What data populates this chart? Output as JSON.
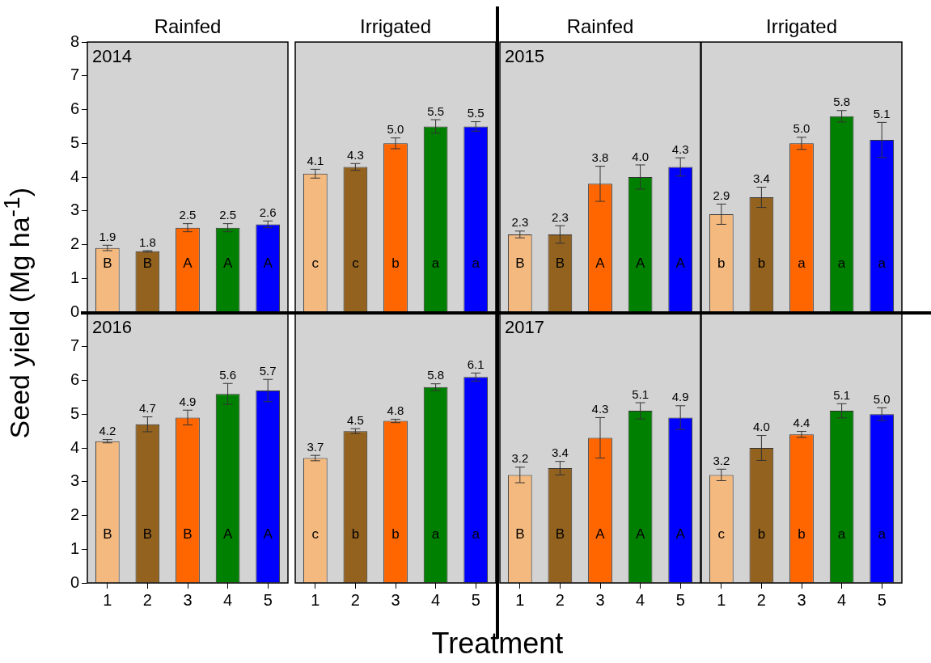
{
  "chart_data": [
    {
      "type": "bar",
      "title": "Rainfed",
      "ylabel": "Seed yield (Mg ha$^{-1}$)",
      "categories": [
        "1",
        "2",
        "3",
        "4",
        "5"
      ],
      "values": [
        1.9,
        1.8,
        2.5,
        2.5,
        2.6
      ],
      "errors": [
        0.08,
        0.02,
        0.12,
        0.12,
        0.1
      ],
      "value_labels": [
        "1.9",
        "1.8",
        "2.5",
        "2.5",
        "2.6"
      ],
      "colors": [
        "#f4b97f",
        "#93621f",
        "#ff6600",
        "#008000",
        "#0000ff"
      ],
      "ylim": [
        0,
        8
      ],
      "yticks": [
        0,
        1,
        2,
        3,
        4,
        5,
        6,
        7,
        8
      ],
      "tick_labels": "y",
      "annotations": [
        "2014",
        "B",
        "B",
        "A",
        "A",
        "A"
      ]
    },
    {
      "type": "bar",
      "title": "Irrigated",
      "categories": [
        "1",
        "2",
        "3",
        "4",
        "5"
      ],
      "values": [
        4.1,
        4.3,
        5.0,
        5.5,
        5.5
      ],
      "errors": [
        0.13,
        0.1,
        0.16,
        0.2,
        0.14
      ],
      "value_labels": [
        "4.1",
        "4.3",
        "5.0",
        "5.5",
        "5.5"
      ],
      "colors": [
        "#f4b97f",
        "#93621f",
        "#ff6600",
        "#008000",
        "#0000ff"
      ],
      "ylim": [
        0,
        8
      ],
      "yticks": [
        0,
        1,
        2,
        3,
        4,
        5,
        6,
        7,
        8
      ],
      "tick_labels": false,
      "annotations": [
        "c",
        "c",
        "b",
        "a",
        "a"
      ]
    },
    {
      "type": "bar",
      "title": "Rainfed",
      "categories": [
        "1",
        "2",
        "3",
        "4",
        "5"
      ],
      "values": [
        2.3,
        2.3,
        3.8,
        4.0,
        4.3
      ],
      "errors": [
        0.1,
        0.26,
        0.52,
        0.36,
        0.27
      ],
      "value_labels": [
        "2.3",
        "2.3",
        "3.8",
        "4.0",
        "4.3"
      ],
      "colors": [
        "#f4b97f",
        "#93621f",
        "#ff6600",
        "#008000",
        "#0000ff"
      ],
      "ylim": [
        0,
        8
      ],
      "yticks": [
        0,
        1,
        2,
        3,
        4,
        5,
        6,
        7,
        8
      ],
      "tick_labels": false,
      "annotations": [
        "2015",
        "B",
        "B",
        "A",
        "A",
        "A"
      ]
    },
    {
      "type": "bar",
      "title": "Irrigated",
      "categories": [
        "1",
        "2",
        "3",
        "4",
        "5"
      ],
      "values": [
        2.9,
        3.4,
        5.0,
        5.8,
        5.1
      ],
      "errors": [
        0.3,
        0.3,
        0.18,
        0.17,
        0.52
      ],
      "value_labels": [
        "2.9",
        "3.4",
        "5.0",
        "5.8",
        "5.1"
      ],
      "colors": [
        "#f4b97f",
        "#93621f",
        "#ff6600",
        "#008000",
        "#0000ff"
      ],
      "ylim": [
        0,
        8
      ],
      "yticks": [
        0,
        1,
        2,
        3,
        4,
        5,
        6,
        7,
        8
      ],
      "tick_labels": false,
      "annotations": [
        "b",
        "b",
        "a",
        "a",
        "a"
      ]
    },
    {
      "type": "bar",
      "xlabel": "Treatment",
      "categories": [
        "1",
        "2",
        "3",
        "4",
        "5"
      ],
      "values": [
        4.2,
        4.7,
        4.9,
        5.6,
        5.7
      ],
      "errors": [
        0.05,
        0.22,
        0.22,
        0.31,
        0.33
      ],
      "value_labels": [
        "4.2",
        "4.7",
        "4.9",
        "5.6",
        "5.7"
      ],
      "colors": [
        "#f4b97f",
        "#93621f",
        "#ff6600",
        "#008000",
        "#0000ff"
      ],
      "ylim": [
        0,
        8
      ],
      "yticks": [
        0,
        1,
        2,
        3,
        4,
        5,
        6,
        7
      ],
      "annotations": [
        "2016",
        "B",
        "B",
        "B",
        "A",
        "A"
      ]
    },
    {
      "type": "bar",
      "categories": [
        "1",
        "2",
        "3",
        "4",
        "5"
      ],
      "values": [
        3.7,
        4.5,
        4.8,
        5.8,
        6.1
      ],
      "errors": [
        0.08,
        0.07,
        0.05,
        0.1,
        0.12
      ],
      "value_labels": [
        "3.7",
        "4.5",
        "4.8",
        "5.8",
        "6.1"
      ],
      "colors": [
        "#f4b97f",
        "#93621f",
        "#ff6600",
        "#008000",
        "#0000ff"
      ],
      "ylim": [
        0,
        8
      ],
      "yticks": [
        0,
        1,
        2,
        3,
        4,
        5,
        6,
        7
      ],
      "tick_labels": "x",
      "annotations": [
        "c",
        "b",
        "b",
        "a",
        "a"
      ]
    },
    {
      "type": "bar",
      "categories": [
        "1",
        "2",
        "3",
        "4",
        "5"
      ],
      "values": [
        3.2,
        3.4,
        4.3,
        5.1,
        4.9
      ],
      "errors": [
        0.23,
        0.2,
        0.6,
        0.24,
        0.35
      ],
      "value_labels": [
        "3.2",
        "3.4",
        "4.3",
        "5.1",
        "4.9"
      ],
      "colors": [
        "#f4b97f",
        "#93621f",
        "#ff6600",
        "#008000",
        "#0000ff"
      ],
      "ylim": [
        0,
        8
      ],
      "yticks": [
        0,
        1,
        2,
        3,
        4,
        5,
        6,
        7
      ],
      "tick_labels": "x",
      "annotations": [
        "2017",
        "B",
        "B",
        "A",
        "A",
        "A"
      ]
    },
    {
      "type": "bar",
      "categories": [
        "1",
        "2",
        "3",
        "4",
        "5"
      ],
      "values": [
        3.2,
        4.0,
        4.4,
        5.1,
        5.0
      ],
      "errors": [
        0.17,
        0.37,
        0.09,
        0.21,
        0.19
      ],
      "value_labels": [
        "3.2",
        "4.0",
        "4.4",
        "5.1",
        "5.0"
      ],
      "colors": [
        "#f4b97f",
        "#93621f",
        "#ff6600",
        "#008000",
        "#0000ff"
      ],
      "ylim": [
        0,
        8
      ],
      "yticks": [
        0,
        1,
        2,
        3,
        4,
        5,
        6,
        7
      ],
      "tick_labels": "x",
      "annotations": [
        "c",
        "b",
        "b",
        "a",
        "a"
      ]
    }
  ]
}
